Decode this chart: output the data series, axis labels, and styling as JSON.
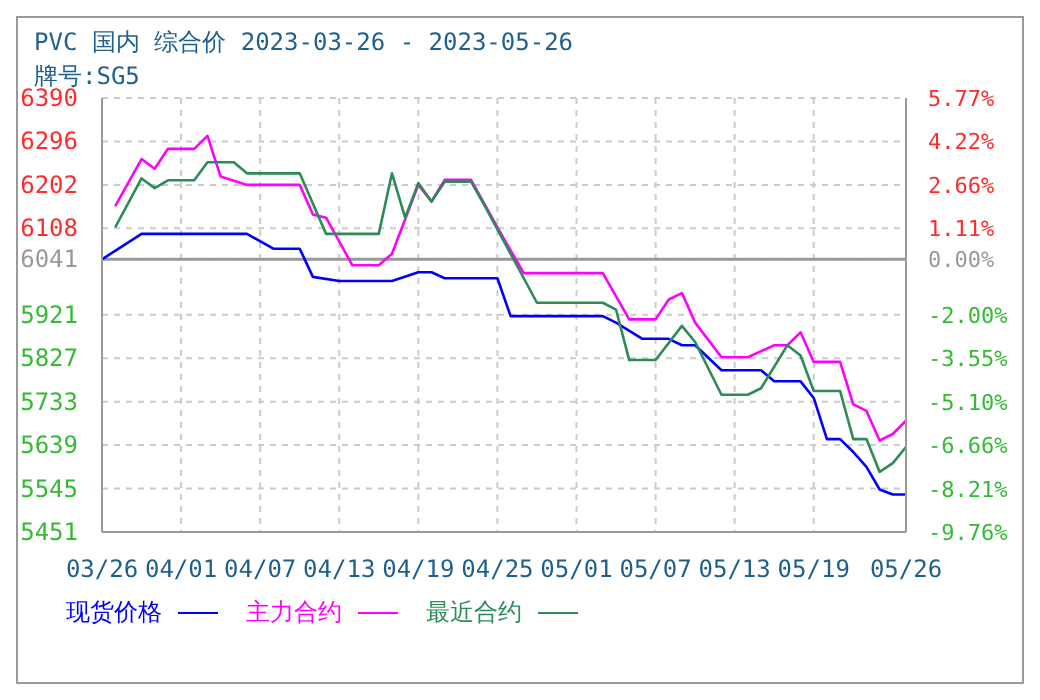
{
  "chart_data": {
    "type": "line",
    "title": "PVC 国内 综合价 2023-03-26 - 2023-05-26",
    "subtitle": "牌号:SG5",
    "xlim": [
      "2023-03-26",
      "2023-05-26"
    ],
    "xticks": [
      {
        "value": "2023-03-26",
        "label": "03/26"
      },
      {
        "value": "2023-04-01",
        "label": "04/01"
      },
      {
        "value": "2023-04-07",
        "label": "04/07"
      },
      {
        "value": "2023-04-13",
        "label": "04/13"
      },
      {
        "value": "2023-04-19",
        "label": "04/19"
      },
      {
        "value": "2023-04-25",
        "label": "04/25"
      },
      {
        "value": "2023-05-01",
        "label": "05/01"
      },
      {
        "value": "2023-05-07",
        "label": "05/07"
      },
      {
        "value": "2023-05-13",
        "label": "05/13"
      },
      {
        "value": "2023-05-19",
        "label": "05/19"
      },
      {
        "value": "2023-05-26",
        "label": "05/26"
      }
    ],
    "ylim": [
      5451,
      6390
    ],
    "yticks": [
      5451,
      5545,
      5639,
      5733,
      5827,
      5921,
      6041,
      6108,
      6202,
      6296,
      6390
    ],
    "y2lim": [
      -9.76,
      5.77
    ],
    "y2ticks": [
      {
        "value": -9.76,
        "label": "-9.76%"
      },
      {
        "value": -8.21,
        "label": "-8.21%"
      },
      {
        "value": -6.66,
        "label": "-6.66%"
      },
      {
        "value": -5.1,
        "label": "-5.10%"
      },
      {
        "value": -3.55,
        "label": "-3.55%"
      },
      {
        "value": -2,
        "label": "-2.00%"
      },
      {
        "value": 0,
        "label": "0.00%"
      },
      {
        "value": 1.11,
        "label": "1.11%"
      },
      {
        "value": 2.66,
        "label": "2.66%"
      },
      {
        "value": 4.22,
        "label": "4.22%"
      },
      {
        "value": 5.77,
        "label": "5.77%"
      }
    ],
    "ref_lines": [
      {
        "axis": "y",
        "value": 6041,
        "color": "#999999",
        "line_style": "solid"
      }
    ],
    "grid": true,
    "legend": "bottom",
    "marker": "none",
    "line_style": "solid",
    "series": [
      {
        "name": "现货价格",
        "color": "#0000ff",
        "x": [
          "2023-03-26",
          "2023-03-29",
          "2023-04-06",
          "2023-04-08",
          "2023-04-10",
          "2023-04-11",
          "2023-04-13",
          "2023-04-17",
          "2023-04-19",
          "2023-04-20",
          "2023-04-21",
          "2023-04-25",
          "2023-04-26",
          "2023-05-03",
          "2023-05-04",
          "2023-05-06",
          "2023-05-08",
          "2023-05-09",
          "2023-05-10",
          "2023-05-12",
          "2023-05-15",
          "2023-05-16",
          "2023-05-18",
          "2023-05-19",
          "2023-05-20",
          "2023-05-21",
          "2023-05-22",
          "2023-05-23",
          "2023-05-24",
          "2023-05-25",
          "2023-05-26"
        ],
        "values": [
          6041,
          6096,
          6096,
          6064,
          6064,
          6003,
          5994,
          5994,
          6013,
          6013,
          6000,
          6000,
          5918,
          5918,
          5904,
          5869,
          5869,
          5855,
          5855,
          5801,
          5801,
          5777,
          5777,
          5741,
          5652,
          5652,
          5624,
          5592,
          5543,
          5532,
          5532
        ]
      },
      {
        "name": "主力合约",
        "color": "#ff00ff",
        "x": [
          "2023-03-27",
          "2023-03-29",
          "2023-03-30",
          "2023-03-31",
          "2023-04-02",
          "2023-04-03",
          "2023-04-04",
          "2023-04-06",
          "2023-04-10",
          "2023-04-11",
          "2023-04-12",
          "2023-04-14",
          "2023-04-16",
          "2023-04-17",
          "2023-04-19",
          "2023-04-20",
          "2023-04-21",
          "2023-04-23",
          "2023-04-25",
          "2023-04-27",
          "2023-05-03",
          "2023-05-05",
          "2023-05-07",
          "2023-05-08",
          "2023-05-09",
          "2023-05-10",
          "2023-05-12",
          "2023-05-14",
          "2023-05-16",
          "2023-05-17",
          "2023-05-18",
          "2023-05-19",
          "2023-05-21",
          "2023-05-22",
          "2023-05-23",
          "2023-05-24",
          "2023-05-25",
          "2023-05-26"
        ],
        "values": [
          6156,
          6258,
          6237,
          6280,
          6280,
          6308,
          6220,
          6202,
          6202,
          6138,
          6131,
          6028,
          6028,
          6053,
          6202,
          6166,
          6213,
          6213,
          6110,
          6011,
          6011,
          5911,
          5911,
          5954,
          5968,
          5904,
          5829,
          5829,
          5855,
          5855,
          5883,
          5819,
          5819,
          5727,
          5713,
          5649,
          5663,
          5692
        ]
      },
      {
        "name": "最近合约",
        "color": "#2e8b57",
        "x": [
          "2023-03-27",
          "2023-03-29",
          "2023-03-30",
          "2023-03-31",
          "2023-04-02",
          "2023-04-03",
          "2023-04-05",
          "2023-04-06",
          "2023-04-10",
          "2023-04-12",
          "2023-04-16",
          "2023-04-17",
          "2023-04-18",
          "2023-04-19",
          "2023-04-20",
          "2023-04-21",
          "2023-04-23",
          "2023-04-24",
          "2023-04-28",
          "2023-05-03",
          "2023-05-04",
          "2023-05-05",
          "2023-05-07",
          "2023-05-09",
          "2023-05-10",
          "2023-05-12",
          "2023-05-14",
          "2023-05-15",
          "2023-05-17",
          "2023-05-18",
          "2023-05-19",
          "2023-05-21",
          "2023-05-22",
          "2023-05-23",
          "2023-05-24",
          "2023-05-25",
          "2023-05-26"
        ],
        "values": [
          6110,
          6216,
          6195,
          6212,
          6212,
          6251,
          6251,
          6227,
          6227,
          6096,
          6096,
          6227,
          6131,
          6206,
          6166,
          6209,
          6209,
          6159,
          5947,
          5947,
          5932,
          5823,
          5823,
          5897,
          5862,
          5748,
          5748,
          5762,
          5855,
          5833,
          5756,
          5756,
          5652,
          5652,
          5581,
          5600,
          5635
        ]
      }
    ]
  }
}
